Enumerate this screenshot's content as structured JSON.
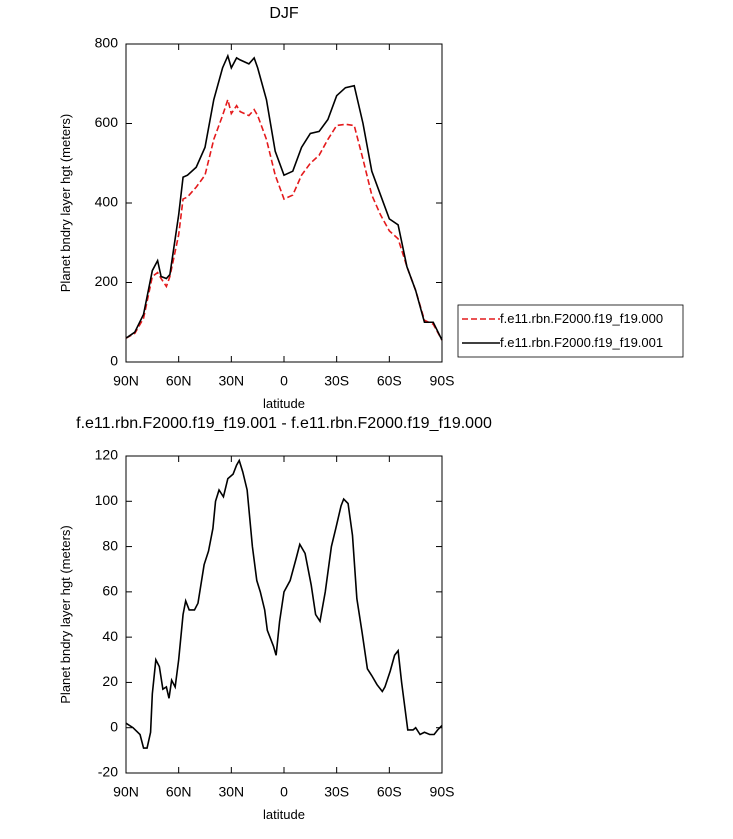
{
  "chart_data": [
    {
      "type": "line",
      "title": "DJF",
      "xlabel": "latitude",
      "ylabel": "Planet bndry layer hgt (meters)",
      "xlim": [
        90,
        -90
      ],
      "ylim": [
        0,
        800
      ],
      "xticks": [
        {
          "value": 90,
          "label": "90N"
        },
        {
          "value": 60,
          "label": "60N"
        },
        {
          "value": 30,
          "label": "30N"
        },
        0,
        {
          "value": -30,
          "label": "30S"
        },
        {
          "value": -60,
          "label": "60S"
        },
        {
          "value": -90,
          "label": "90S"
        }
      ],
      "yticks": [
        0,
        200,
        400,
        600,
        800
      ],
      "legend": "right",
      "x": [
        90,
        85,
        80,
        75,
        72,
        70,
        67,
        65,
        60,
        57.5,
        55,
        50,
        45,
        40,
        35,
        32,
        30,
        27,
        25,
        20,
        17,
        15,
        10,
        5,
        0,
        -5,
        -10,
        -15,
        -20,
        -25,
        -30,
        -35,
        -40,
        -45,
        -50,
        -55,
        -60,
        -65,
        -70,
        -75,
        -80,
        -85,
        -90
      ],
      "series": [
        {
          "name": "f.e11.rbn.F2000.f19_f19.000",
          "color": "#e41a1c",
          "line_style": "dashed",
          "values": [
            60,
            72,
            110,
            215,
            225,
            210,
            190,
            215,
            320,
            410,
            415,
            440,
            470,
            560,
            620,
            660,
            625,
            645,
            630,
            620,
            635,
            620,
            560,
            470,
            410,
            420,
            470,
            500,
            520,
            560,
            595,
            598,
            595,
            510,
            420,
            370,
            330,
            310,
            240,
            180,
            105,
            95,
            55
          ]
        },
        {
          "name": "f.e11.rbn.F2000.f19_f19.001",
          "color": "#000000",
          "line_style": "solid",
          "values": [
            60,
            75,
            120,
            230,
            255,
            215,
            210,
            220,
            370,
            465,
            470,
            490,
            540,
            660,
            740,
            770,
            740,
            765,
            760,
            750,
            765,
            740,
            660,
            530,
            470,
            480,
            540,
            575,
            580,
            610,
            670,
            690,
            695,
            600,
            480,
            420,
            360,
            345,
            240,
            180,
            100,
            100,
            55
          ]
        }
      ]
    },
    {
      "type": "line",
      "title": "f.e11.rbn.F2000.f19_f19.001 - f.e11.rbn.F2000.f19_f19.000",
      "xlabel": "latitude",
      "ylabel": "Planet bndry layer hgt (meters)",
      "xlim": [
        90,
        -90
      ],
      "ylim": [
        -20,
        120
      ],
      "xticks": [
        {
          "value": 90,
          "label": "90N"
        },
        {
          "value": 60,
          "label": "60N"
        },
        {
          "value": 30,
          "label": "30N"
        },
        0,
        {
          "value": -30,
          "label": "30S"
        },
        {
          "value": -60,
          "label": "60S"
        },
        {
          "value": -90,
          "label": "90S"
        }
      ],
      "yticks": [
        -20,
        0,
        20,
        40,
        60,
        80,
        100,
        120
      ],
      "color": "#000000",
      "x": [
        90,
        86,
        82,
        80,
        78,
        76,
        75,
        73,
        71,
        69,
        67,
        65.5,
        64,
        62,
        60,
        57.5,
        56,
        54,
        51,
        49,
        45.5,
        43,
        40.5,
        39,
        37,
        34.5,
        32,
        29,
        27,
        25.5,
        23.5,
        21,
        18,
        15.5,
        13.5,
        11,
        9.5,
        6,
        4.5,
        2.5,
        0,
        -3.5,
        -7,
        -9,
        -12,
        -15.5,
        -18,
        -20.5,
        -23.5,
        -27,
        -29.5,
        -32.5,
        -34,
        -36.5,
        -39,
        -41.5,
        -44.5,
        -47.5,
        -50,
        -53,
        -56,
        -57.5,
        -60.5,
        -63,
        -65,
        -67,
        -70.5,
        -73.5,
        -75,
        -77.5,
        -80,
        -83,
        -85.5,
        -87.5,
        -90
      ],
      "values": [
        2,
        0,
        -3,
        -9,
        -9,
        -2,
        15,
        30,
        27,
        17,
        18,
        13,
        21,
        18,
        30,
        50,
        56,
        52,
        52,
        55,
        72,
        78,
        88,
        100,
        105,
        102,
        110,
        112,
        116,
        118,
        113,
        105,
        80,
        65,
        60,
        52,
        43,
        36,
        32,
        47,
        60,
        65,
        75,
        81,
        77,
        63,
        50,
        47,
        60,
        80,
        88,
        98,
        101,
        99,
        85,
        57,
        42,
        26,
        23,
        19,
        16,
        18,
        25,
        32,
        34,
        20,
        -1,
        -1,
        0,
        -3,
        -2,
        -3,
        -3,
        -1,
        1
      ]
    }
  ]
}
